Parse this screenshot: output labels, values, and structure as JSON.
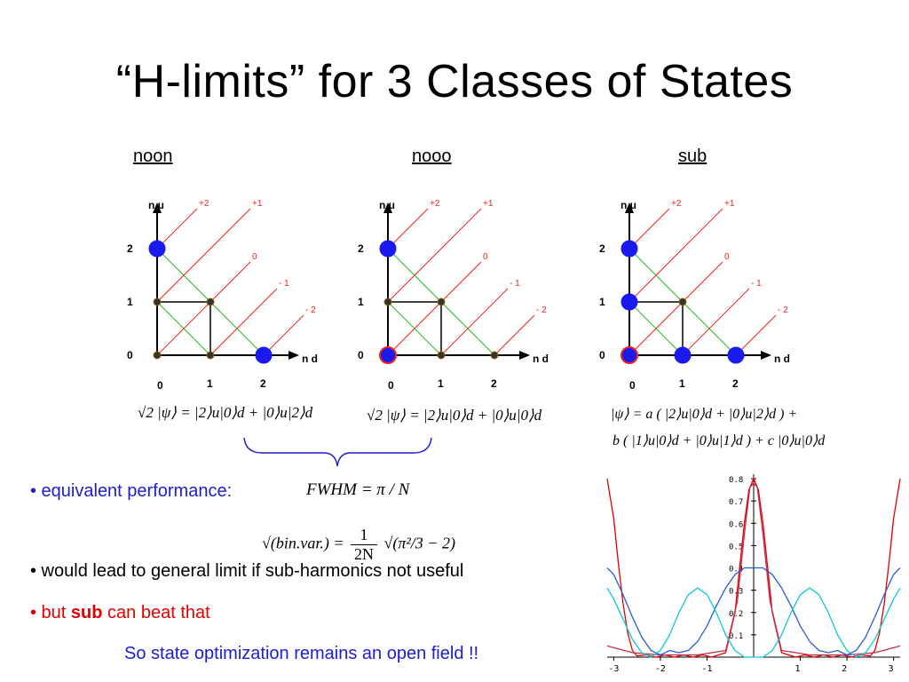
{
  "slide": {
    "title": "“H-limits” for 3 Classes of States"
  },
  "columns": [
    {
      "id": "noon",
      "heading": "noon",
      "heading_color": "#1d1dcc",
      "formula": "√2 |ψ⟩ = |2⟩u|0⟩d + |0⟩u|2⟩d"
    },
    {
      "id": "nooo",
      "heading": "nooo",
      "heading_color": "#000000",
      "formula": "√2 |ψ⟩ = |2⟩u|0⟩d + |0⟩u|0⟩d"
    },
    {
      "id": "sub",
      "heading": "sub",
      "heading_color": "#e00000",
      "formula_line1": "|ψ⟩ = a ( |2⟩u|0⟩d + |0⟩u|2⟩d ) +",
      "formula_line2": "b ( |1⟩u|0⟩d + |0⟩u|1⟩d ) + c |0⟩u|0⟩d"
    }
  ],
  "lattice_labels": {
    "y_axis": "n u",
    "x_axis": "n d",
    "y_ticks": [
      "0",
      "1",
      "2"
    ],
    "x_ticks": [
      "0",
      "1",
      "2"
    ],
    "diagonals": [
      "+2",
      "+1",
      "0",
      "- 1",
      "- 2"
    ]
  },
  "bullets": [
    {
      "text": "• equivalent performance:",
      "color": "#1d1dcc"
    },
    {
      "text": "• would lead to general limit if sub-harmonics not useful",
      "color": "#000000"
    },
    {
      "text_prefix": "• but ",
      "text_bold": "sub",
      "text_suffix": " can beat that",
      "color": "#e00000"
    },
    {
      "text": "So state optimization remains an open field !!",
      "color": "#1d1dcc"
    }
  ],
  "formulas": {
    "fwhm": "FWHM = π / N",
    "binvar_left": "√(bin.var.) = ",
    "binvar_frac_num": "1",
    "binvar_frac_den": "2N",
    "binvar_right": "√(π²/3 − 2)"
  },
  "chart_data": {
    "type": "line",
    "x_ticks": [
      "-3",
      "-2",
      "-1",
      "1",
      "2",
      "3"
    ],
    "y_ticks": [
      "0.8",
      "0.7",
      "0.6",
      "0.5",
      "0.4",
      "0.3",
      "0.2",
      "0.1"
    ],
    "xlim": [
      -3.14,
      3.14
    ],
    "ylim": [
      0,
      0.82
    ],
    "series": [
      {
        "color": "#e00000",
        "points": [
          [
            -3.14,
            0.8
          ],
          [
            -3.0,
            0.62
          ],
          [
            -2.9,
            0.42
          ],
          [
            -2.8,
            0.24
          ],
          [
            -2.7,
            0.11
          ],
          [
            -2.6,
            0.03
          ],
          [
            -2.5,
            0.005
          ],
          [
            -2.3,
            0.01
          ],
          [
            -2.1,
            0.0
          ],
          [
            -1.9,
            0.01
          ],
          [
            -1.7,
            0.0
          ],
          [
            -1.5,
            0.01
          ],
          [
            -1.3,
            0.0
          ],
          [
            -1.1,
            0.01
          ],
          [
            -0.9,
            0.0
          ],
          [
            -0.6,
            0.02
          ],
          [
            -0.4,
            0.2
          ],
          [
            -0.3,
            0.4
          ],
          [
            -0.2,
            0.6
          ],
          [
            -0.1,
            0.75
          ],
          [
            0,
            0.8
          ],
          [
            0.1,
            0.75
          ],
          [
            0.2,
            0.6
          ],
          [
            0.3,
            0.4
          ],
          [
            0.4,
            0.2
          ],
          [
            0.6,
            0.02
          ],
          [
            0.9,
            0.0
          ],
          [
            1.1,
            0.01
          ],
          [
            1.3,
            0.0
          ],
          [
            1.5,
            0.01
          ],
          [
            1.7,
            0.0
          ],
          [
            1.9,
            0.01
          ],
          [
            2.1,
            0.0
          ],
          [
            2.3,
            0.01
          ],
          [
            2.5,
            0.005
          ],
          [
            2.6,
            0.03
          ],
          [
            2.7,
            0.11
          ],
          [
            2.8,
            0.24
          ],
          [
            2.9,
            0.42
          ],
          [
            3.0,
            0.62
          ],
          [
            3.14,
            0.8
          ]
        ]
      },
      {
        "color": "#c03050",
        "points": [
          [
            -3.14,
            0.05
          ],
          [
            -2.6,
            0.02
          ],
          [
            -2.0,
            0.01
          ],
          [
            -1.2,
            0.01
          ],
          [
            -0.6,
            0.03
          ],
          [
            -0.35,
            0.25
          ],
          [
            -0.2,
            0.55
          ],
          [
            -0.08,
            0.76
          ],
          [
            0,
            0.78
          ],
          [
            0.08,
            0.76
          ],
          [
            0.2,
            0.55
          ],
          [
            0.35,
            0.25
          ],
          [
            0.6,
            0.03
          ],
          [
            1.2,
            0.01
          ],
          [
            2.0,
            0.01
          ],
          [
            2.6,
            0.02
          ],
          [
            3.14,
            0.05
          ]
        ]
      },
      {
        "color": "#2a5bd7",
        "points": [
          [
            -3.14,
            0.4
          ],
          [
            -3.0,
            0.37
          ],
          [
            -2.8,
            0.28
          ],
          [
            -2.6,
            0.18
          ],
          [
            -2.4,
            0.09
          ],
          [
            -2.2,
            0.03
          ],
          [
            -2.0,
            0.01
          ],
          [
            -1.8,
            0.03
          ],
          [
            -1.6,
            0.02
          ],
          [
            -1.4,
            0.03
          ],
          [
            -1.2,
            0.07
          ],
          [
            -1.0,
            0.14
          ],
          [
            -0.8,
            0.23
          ],
          [
            -0.6,
            0.31
          ],
          [
            -0.4,
            0.37
          ],
          [
            -0.2,
            0.4
          ],
          [
            0,
            0.4
          ],
          [
            0.2,
            0.4
          ],
          [
            0.4,
            0.37
          ],
          [
            0.6,
            0.31
          ],
          [
            0.8,
            0.23
          ],
          [
            1.0,
            0.14
          ],
          [
            1.2,
            0.07
          ],
          [
            1.4,
            0.03
          ],
          [
            1.6,
            0.02
          ],
          [
            1.8,
            0.03
          ],
          [
            2.0,
            0.01
          ],
          [
            2.2,
            0.03
          ],
          [
            2.4,
            0.09
          ],
          [
            2.6,
            0.18
          ],
          [
            2.8,
            0.28
          ],
          [
            3.0,
            0.37
          ],
          [
            3.14,
            0.4
          ]
        ]
      },
      {
        "color": "#10c8d8",
        "points": [
          [
            -3.14,
            0.31
          ],
          [
            -3.0,
            0.26
          ],
          [
            -2.8,
            0.17
          ],
          [
            -2.6,
            0.08
          ],
          [
            -2.4,
            0.02
          ],
          [
            -2.2,
            0.0
          ],
          [
            -2.0,
            0.03
          ],
          [
            -1.8,
            0.1
          ],
          [
            -1.6,
            0.2
          ],
          [
            -1.4,
            0.28
          ],
          [
            -1.2,
            0.31
          ],
          [
            -1.0,
            0.28
          ],
          [
            -0.8,
            0.2
          ],
          [
            -0.6,
            0.1
          ],
          [
            -0.4,
            0.03
          ],
          [
            -0.2,
            0.0
          ],
          [
            0,
            0.0
          ],
          [
            0.2,
            0.0
          ],
          [
            0.4,
            0.03
          ],
          [
            0.6,
            0.1
          ],
          [
            0.8,
            0.2
          ],
          [
            1.0,
            0.28
          ],
          [
            1.2,
            0.31
          ],
          [
            1.4,
            0.28
          ],
          [
            1.6,
            0.2
          ],
          [
            1.8,
            0.1
          ],
          [
            2.0,
            0.03
          ],
          [
            2.2,
            0.0
          ],
          [
            2.4,
            0.02
          ],
          [
            2.6,
            0.08
          ],
          [
            2.8,
            0.17
          ],
          [
            3.0,
            0.26
          ],
          [
            3.14,
            0.31
          ]
        ]
      }
    ]
  }
}
